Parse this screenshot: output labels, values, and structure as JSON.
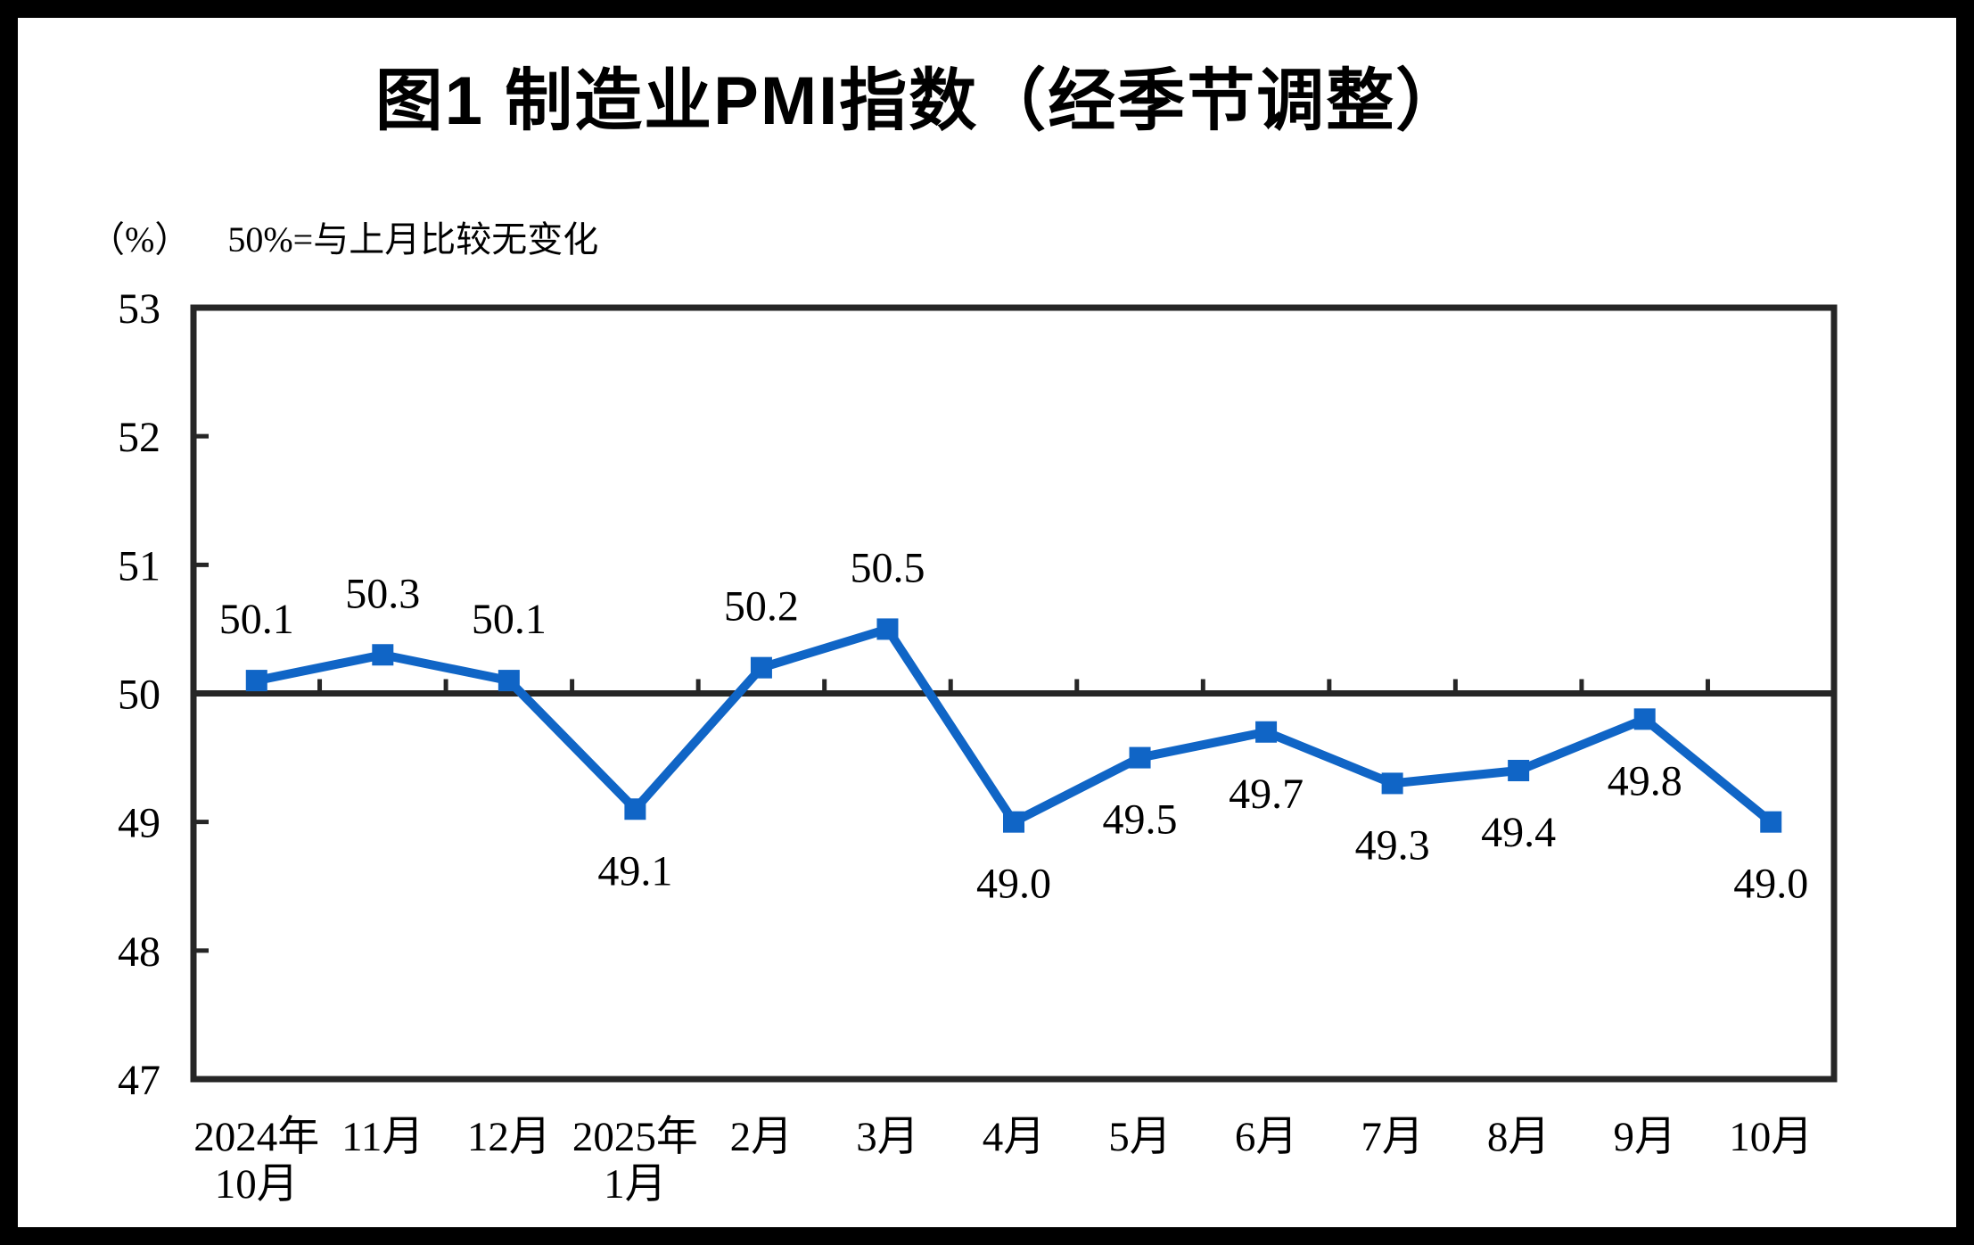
{
  "title": "图1  制造业PMI指数（经季节调整）",
  "subtitle": {
    "unit": "（%）",
    "note": "50%=与上月比较无变化"
  },
  "chart_data": {
    "type": "line",
    "title": "图1 制造业PMI指数（经季节调整）",
    "xlabel": "",
    "ylabel": "（%）",
    "categories": [
      [
        "2024年",
        "10月"
      ],
      [
        "11月"
      ],
      [
        "12月"
      ],
      [
        "2025年",
        "1月"
      ],
      [
        "2月"
      ],
      [
        "3月"
      ],
      [
        "4月"
      ],
      [
        "5月"
      ],
      [
        "6月"
      ],
      [
        "7月"
      ],
      [
        "8月"
      ],
      [
        "9月"
      ],
      [
        "10月"
      ]
    ],
    "series": [
      {
        "name": "制造业PMI指数（经季节调整）",
        "values": [
          50.1,
          50.3,
          50.1,
          49.1,
          50.2,
          50.5,
          49.0,
          49.5,
          49.7,
          49.3,
          49.4,
          49.8,
          49.0
        ]
      }
    ],
    "data_labels": [
      "50.1",
      "50.3",
      "50.1",
      "49.1",
      "50.2",
      "50.5",
      "49.0",
      "49.5",
      "49.7",
      "49.3",
      "49.4",
      "49.8",
      "49.0"
    ],
    "ylim": [
      47,
      53
    ],
    "yticks": [
      47,
      48,
      49,
      50,
      51,
      52,
      53
    ],
    "reference_line_y": 50,
    "grid": "off",
    "legend": "none",
    "line_color": "#1065C6",
    "axis_color": "#262626",
    "marker": "square"
  }
}
